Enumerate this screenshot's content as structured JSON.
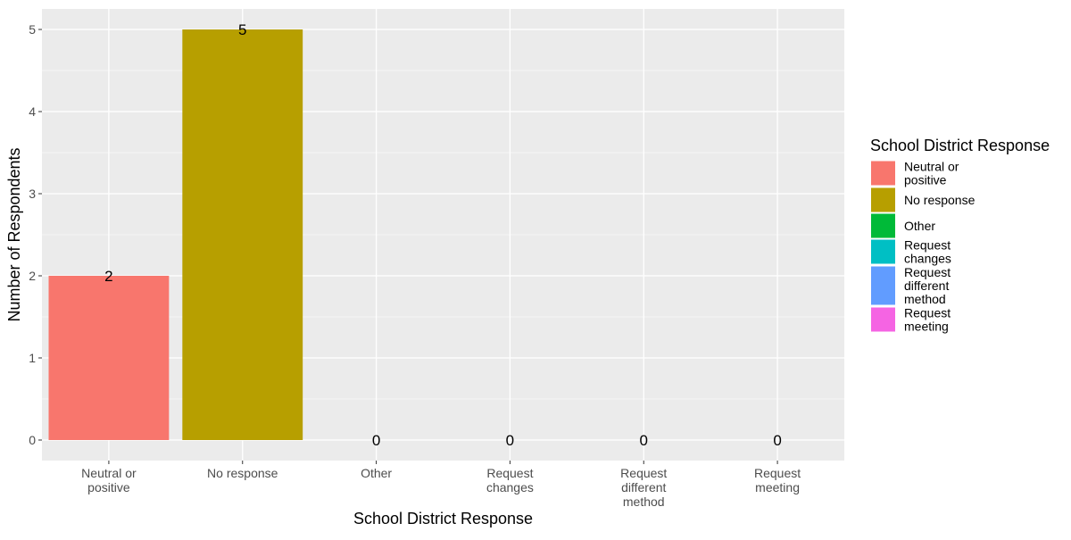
{
  "chart_data": {
    "type": "bar",
    "title": "",
    "xlabel": "School District Response",
    "ylabel": "Number of Respondents",
    "categories": [
      [
        "Neutral or",
        "positive"
      ],
      [
        "No response"
      ],
      [
        "Other"
      ],
      [
        "Request",
        "changes"
      ],
      [
        "Request",
        "different",
        "method"
      ],
      [
        "Request",
        "meeting"
      ]
    ],
    "values": [
      2,
      5,
      0,
      0,
      0,
      0
    ],
    "data_labels": [
      "2",
      "5",
      "0",
      "0",
      "0",
      "0"
    ],
    "colors": [
      "#F8766D",
      "#B79F00",
      "#00BA38",
      "#00BFC4",
      "#619CFF",
      "#F564E3"
    ],
    "ylim": [
      -0.25,
      5.25
    ],
    "yticks": [
      0,
      1,
      2,
      3,
      4,
      5
    ],
    "grid": true,
    "panel_background": "#EBEBEB",
    "legend": {
      "title": "School District Response",
      "position": "right",
      "entries": [
        [
          "Neutral or",
          "positive"
        ],
        [
          "No response"
        ],
        [
          "Other"
        ],
        [
          "Request",
          "changes"
        ],
        [
          "Request",
          "different",
          "method"
        ],
        [
          "Request",
          "meeting"
        ]
      ]
    }
  }
}
